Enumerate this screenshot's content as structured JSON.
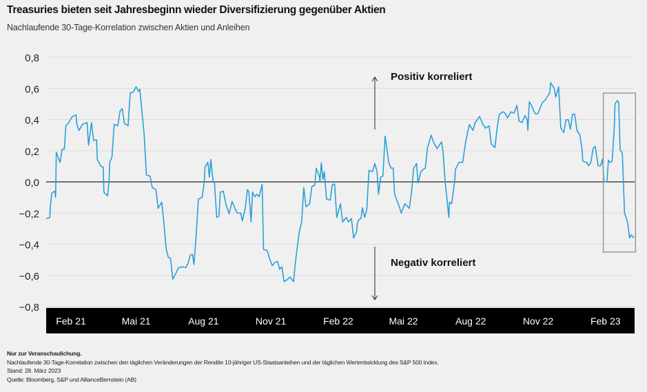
{
  "title": "Treasuries bieten seit Jahresbeginn wieder Diversifizierung gegenüber Aktien",
  "subtitle": "Nachlaufende 30-Tage-Korrelation zwischen Aktien und Anleihen",
  "footer": {
    "note": "Nur zur Veranschaulichung.",
    "description": "Nachlaufende 30-Tage-Korrelation zwischen den täglichen Veränderungen der Rendite 10-jähriger US-Staatsanleihen und der täglichen Wertentwicklung des S&P 500 Index.",
    "date": "Stand: 28. März 2023",
    "source": "Quelle: Bloomberg, S&P und AllianceBernstein (AB)"
  },
  "chart_data": {
    "type": "line",
    "title": "Treasuries bieten seit Jahresbeginn wieder Diversifizierung gegenüber Aktien",
    "subtitle": "Nachlaufende 30-Tage-Korrelation zwischen Aktien und Anleihen",
    "xlabel": "",
    "ylabel": "",
    "ylim": [
      -0.8,
      0.8
    ],
    "yticks": [
      0.8,
      0.6,
      0.4,
      0.2,
      0.0,
      -0.2,
      -0.4,
      -0.6,
      -0.8
    ],
    "ytick_labels": [
      "0,8",
      "0,6",
      "0,4",
      "0,2",
      "0,0",
      "−0,2",
      "−0,4",
      "−0,6",
      "−0,8"
    ],
    "xticks": [
      "2021-02-01",
      "2021-05-01",
      "2021-08-01",
      "2021-11-01",
      "2022-02-01",
      "2022-05-01",
      "2022-08-01",
      "2022-11-01",
      "2023-02-01"
    ],
    "xtick_labels": [
      "Feb 21",
      "Mai 21",
      "Aug 21",
      "Nov 21",
      "Feb 22",
      "Mai 22",
      "Aug 22",
      "Nov 22",
      "Feb 23"
    ],
    "grid": "horizontal",
    "line_color": "#2a9fd8",
    "annotations": {
      "positive": "Positiv korreliert",
      "negative": "Negativ korreliert",
      "highlight_box": {
        "x": [
          "2023-01-29",
          "2023-03-14"
        ],
        "y": [
          -0.45,
          0.57
        ]
      }
    },
    "series": [
      {
        "points": [
          [
            "2020-12-29",
            -0.235
          ],
          [
            "2021-01-03",
            -0.23
          ],
          [
            "2021-01-04",
            -0.15
          ],
          [
            "2021-01-06",
            -0.07
          ],
          [
            "2021-01-10",
            -0.06
          ],
          [
            "2021-01-11",
            -0.1
          ],
          [
            "2021-01-12",
            0.19
          ],
          [
            "2021-01-17",
            0.125
          ],
          [
            "2021-01-20",
            0.21
          ],
          [
            "2021-01-23",
            0.21
          ],
          [
            "2021-01-25",
            0.36
          ],
          [
            "2021-01-29",
            0.38
          ],
          [
            "2021-02-03",
            0.42
          ],
          [
            "2021-02-08",
            0.43
          ],
          [
            "2021-02-09",
            0.37
          ],
          [
            "2021-02-12",
            0.33
          ],
          [
            "2021-02-17",
            0.37
          ],
          [
            "2021-02-23",
            0.38
          ],
          [
            "2021-02-25",
            0.235
          ],
          [
            "2021-03-01",
            0.38
          ],
          [
            "2021-03-04",
            0.265
          ],
          [
            "2021-03-08",
            0.27
          ],
          [
            "2021-03-09",
            0.14
          ],
          [
            "2021-03-14",
            0.1
          ],
          [
            "2021-03-17",
            0.095
          ],
          [
            "2021-03-18",
            -0.066
          ],
          [
            "2021-03-23",
            -0.09
          ],
          [
            "2021-03-25",
            0.007
          ],
          [
            "2021-03-26",
            0.125
          ],
          [
            "2021-03-29",
            0.16
          ],
          [
            "2021-04-01",
            0.37
          ],
          [
            "2021-04-06",
            0.36
          ],
          [
            "2021-04-09",
            0.455
          ],
          [
            "2021-04-12",
            0.47
          ],
          [
            "2021-04-15",
            0.375
          ],
          [
            "2021-04-20",
            0.36
          ],
          [
            "2021-04-21",
            0.44
          ],
          [
            "2021-04-23",
            0.57
          ],
          [
            "2021-04-27",
            0.575
          ],
          [
            "2021-05-01",
            0.61
          ],
          [
            "2021-05-04",
            0.58
          ],
          [
            "2021-05-06",
            0.595
          ],
          [
            "2021-05-12",
            0.3
          ],
          [
            "2021-05-15",
            0.044
          ],
          [
            "2021-05-20",
            0.037
          ],
          [
            "2021-05-23",
            -0.037
          ],
          [
            "2021-05-28",
            -0.05
          ],
          [
            "2021-05-31",
            -0.17
          ],
          [
            "2021-06-05",
            -0.13
          ],
          [
            "2021-06-08",
            -0.27
          ],
          [
            "2021-06-11",
            -0.43
          ],
          [
            "2021-06-14",
            -0.485
          ],
          [
            "2021-06-17",
            -0.49
          ],
          [
            "2021-06-20",
            -0.625
          ],
          [
            "2021-06-25",
            -0.58
          ],
          [
            "2021-06-28",
            -0.55
          ],
          [
            "2021-07-03",
            -0.545
          ],
          [
            "2021-07-08",
            -0.55
          ],
          [
            "2021-07-11",
            -0.52
          ],
          [
            "2021-07-14",
            -0.47
          ],
          [
            "2021-07-17",
            -0.465
          ],
          [
            "2021-07-19",
            -0.53
          ],
          [
            "2021-07-22",
            -0.345
          ],
          [
            "2021-07-25",
            -0.11
          ],
          [
            "2021-07-30",
            -0.1
          ],
          [
            "2021-08-02",
            -0.007
          ],
          [
            "2021-08-03",
            0.095
          ],
          [
            "2021-08-07",
            0.125
          ],
          [
            "2021-08-09",
            0.03
          ],
          [
            "2021-08-11",
            0.143
          ],
          [
            "2021-08-14",
            0.007
          ],
          [
            "2021-08-16",
            -0.007
          ],
          [
            "2021-08-19",
            -0.228
          ],
          [
            "2021-08-22",
            -0.22
          ],
          [
            "2021-08-24",
            -0.066
          ],
          [
            "2021-08-28",
            -0.06
          ],
          [
            "2021-09-01",
            -0.15
          ],
          [
            "2021-09-05",
            -0.205
          ],
          [
            "2021-09-09",
            -0.125
          ],
          [
            "2021-09-13",
            -0.17
          ],
          [
            "2021-09-16",
            -0.2
          ],
          [
            "2021-09-21",
            -0.2
          ],
          [
            "2021-09-23",
            -0.25
          ],
          [
            "2021-09-27",
            -0.17
          ],
          [
            "2021-09-30",
            -0.05
          ],
          [
            "2021-10-02",
            -0.066
          ],
          [
            "2021-10-05",
            -0.257
          ],
          [
            "2021-10-07",
            -0.066
          ],
          [
            "2021-10-10",
            -0.095
          ],
          [
            "2021-10-13",
            -0.08
          ],
          [
            "2021-10-16",
            -0.095
          ],
          [
            "2021-10-20",
            -0.015
          ],
          [
            "2021-10-22",
            -0.434
          ],
          [
            "2021-10-27",
            -0.44
          ],
          [
            "2021-10-30",
            -0.49
          ],
          [
            "2021-11-03",
            -0.537
          ],
          [
            "2021-11-07",
            -0.515
          ],
          [
            "2021-11-10",
            -0.51
          ],
          [
            "2021-11-13",
            -0.56
          ],
          [
            "2021-11-16",
            -0.545
          ],
          [
            "2021-11-19",
            -0.64
          ],
          [
            "2021-11-24",
            -0.625
          ],
          [
            "2021-11-27",
            -0.61
          ],
          [
            "2021-12-02",
            -0.64
          ],
          [
            "2021-12-04",
            -0.537
          ],
          [
            "2021-12-07",
            -0.42
          ],
          [
            "2021-12-10",
            -0.316
          ],
          [
            "2021-12-13",
            -0.257
          ],
          [
            "2021-12-16",
            -0.037
          ],
          [
            "2021-12-19",
            -0.16
          ],
          [
            "2021-12-24",
            -0.14
          ],
          [
            "2021-12-27",
            -0.03
          ],
          [
            "2021-12-31",
            -0.022
          ],
          [
            "2022-01-02",
            0.088
          ],
          [
            "2022-01-06",
            0.037
          ],
          [
            "2022-01-07",
            0.007
          ],
          [
            "2022-01-09",
            0.122
          ],
          [
            "2022-01-11",
            0.015
          ],
          [
            "2022-01-13",
            0.066
          ],
          [
            "2022-01-16",
            -0.11
          ],
          [
            "2022-01-21",
            -0.117
          ],
          [
            "2022-01-24",
            -0.015
          ],
          [
            "2022-01-27",
            -0.015
          ],
          [
            "2022-01-30",
            -0.228
          ],
          [
            "2022-02-04",
            -0.14
          ],
          [
            "2022-02-07",
            -0.257
          ],
          [
            "2022-02-12",
            -0.228
          ],
          [
            "2022-02-15",
            -0.257
          ],
          [
            "2022-02-19",
            -0.235
          ],
          [
            "2022-02-22",
            -0.36
          ],
          [
            "2022-02-26",
            -0.32
          ],
          [
            "2022-02-27",
            -0.27
          ],
          [
            "2022-03-01",
            -0.243
          ],
          [
            "2022-03-04",
            -0.235
          ],
          [
            "2022-03-06",
            -0.166
          ],
          [
            "2022-03-09",
            -0.228
          ],
          [
            "2022-03-12",
            -0.18
          ],
          [
            "2022-03-15",
            0.074
          ],
          [
            "2022-03-20",
            0.066
          ],
          [
            "2022-03-23",
            0.118
          ],
          [
            "2022-03-26",
            0.066
          ],
          [
            "2022-03-28",
            -0.08
          ],
          [
            "2022-03-31",
            0.03
          ],
          [
            "2022-04-03",
            0.037
          ],
          [
            "2022-04-06",
            0.294
          ],
          [
            "2022-04-11",
            0.125
          ],
          [
            "2022-04-14",
            0.088
          ],
          [
            "2022-04-17",
            0.088
          ],
          [
            "2022-04-19",
            -0.08
          ],
          [
            "2022-04-25",
            -0.154
          ],
          [
            "2022-04-28",
            -0.2
          ],
          [
            "2022-05-03",
            -0.14
          ],
          [
            "2022-05-09",
            -0.17
          ],
          [
            "2022-05-12",
            -0.07
          ],
          [
            "2022-05-15",
            0.088
          ],
          [
            "2022-05-19",
            0.118
          ],
          [
            "2022-05-21",
            -0.007
          ],
          [
            "2022-05-25",
            0.066
          ],
          [
            "2022-05-28",
            0.08
          ],
          [
            "2022-05-31",
            0.088
          ],
          [
            "2022-06-03",
            0.22
          ],
          [
            "2022-06-08",
            0.3
          ],
          [
            "2022-06-11",
            0.257
          ],
          [
            "2022-06-16",
            0.213
          ],
          [
            "2022-06-22",
            0.257
          ],
          [
            "2022-06-24",
            0.2
          ],
          [
            "2022-06-27",
            0.007
          ],
          [
            "2022-07-02",
            -0.228
          ],
          [
            "2022-07-03",
            -0.13
          ],
          [
            "2022-07-06",
            -0.14
          ],
          [
            "2022-07-10",
            0.007
          ],
          [
            "2022-07-11",
            0.08
          ],
          [
            "2022-07-16",
            0.125
          ],
          [
            "2022-07-21",
            0.125
          ],
          [
            "2022-07-25",
            0.257
          ],
          [
            "2022-07-30",
            0.368
          ],
          [
            "2022-08-04",
            0.33
          ],
          [
            "2022-08-07",
            0.38
          ],
          [
            "2022-08-13",
            0.42
          ],
          [
            "2022-08-17",
            0.375
          ],
          [
            "2022-08-21",
            0.345
          ],
          [
            "2022-08-26",
            0.36
          ],
          [
            "2022-08-29",
            0.243
          ],
          [
            "2022-09-03",
            0.22
          ],
          [
            "2022-09-06",
            0.345
          ],
          [
            "2022-09-09",
            0.434
          ],
          [
            "2022-09-14",
            0.45
          ],
          [
            "2022-09-17",
            0.44
          ],
          [
            "2022-09-20",
            0.41
          ],
          [
            "2022-09-25",
            0.45
          ],
          [
            "2022-09-29",
            0.44
          ],
          [
            "2022-10-03",
            0.49
          ],
          [
            "2022-10-06",
            0.39
          ],
          [
            "2022-10-10",
            0.38
          ],
          [
            "2022-10-14",
            0.426
          ],
          [
            "2022-10-17",
            0.4
          ],
          [
            "2022-10-18",
            0.33
          ],
          [
            "2022-10-20",
            0.515
          ],
          [
            "2022-10-23",
            0.49
          ],
          [
            "2022-10-26",
            0.455
          ],
          [
            "2022-10-29",
            0.434
          ],
          [
            "2022-11-01",
            0.44
          ],
          [
            "2022-11-04",
            0.478
          ],
          [
            "2022-11-07",
            0.51
          ],
          [
            "2022-11-10",
            0.522
          ],
          [
            "2022-11-14",
            0.55
          ],
          [
            "2022-11-17",
            0.573
          ],
          [
            "2022-11-18",
            0.637
          ],
          [
            "2022-11-23",
            0.6
          ],
          [
            "2022-11-25",
            0.544
          ],
          [
            "2022-11-29",
            0.61
          ],
          [
            "2022-12-02",
            0.345
          ],
          [
            "2022-12-06",
            0.316
          ],
          [
            "2022-12-09",
            0.397
          ],
          [
            "2022-12-12",
            0.4
          ],
          [
            "2022-12-15",
            0.338
          ],
          [
            "2022-12-18",
            0.434
          ],
          [
            "2022-12-21",
            0.434
          ],
          [
            "2022-12-24",
            0.33
          ],
          [
            "2022-12-28",
            0.3
          ],
          [
            "2022-12-31",
            0.206
          ],
          [
            "2023-01-01",
            0.132
          ],
          [
            "2023-01-06",
            0.125
          ],
          [
            "2023-01-09",
            0.103
          ],
          [
            "2023-01-12",
            0.125
          ],
          [
            "2023-01-15",
            0.213
          ],
          [
            "2023-01-18",
            0.228
          ],
          [
            "2023-01-22",
            0.103
          ],
          [
            "2023-01-25",
            0.103
          ],
          [
            "2023-01-28",
            0.147
          ],
          [
            "2023-01-30",
            0.0
          ],
          [
            "2023-02-03",
            0.0
          ],
          [
            "2023-02-05",
            0.14
          ],
          [
            "2023-02-07",
            0.125
          ],
          [
            "2023-02-10",
            0.13
          ],
          [
            "2023-02-13",
            0.345
          ],
          [
            "2023-02-14",
            0.5
          ],
          [
            "2023-02-17",
            0.522
          ],
          [
            "2023-02-19",
            0.51
          ],
          [
            "2023-02-21",
            0.206
          ],
          [
            "2023-02-24",
            0.184
          ],
          [
            "2023-02-27",
            -0.2
          ],
          [
            "2023-03-03",
            -0.257
          ],
          [
            "2023-03-06",
            -0.36
          ],
          [
            "2023-03-08",
            -0.34
          ],
          [
            "2023-03-12",
            -0.36
          ]
        ]
      }
    ]
  }
}
